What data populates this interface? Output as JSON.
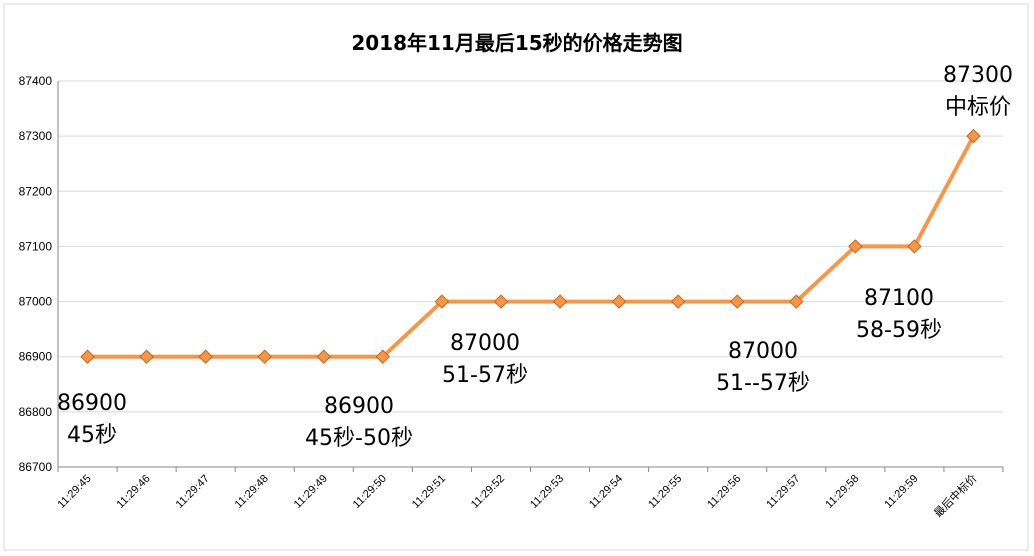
{
  "chart_data": {
    "type": "line",
    "title": "2018年11月最后15秒的价格走势图",
    "xlabel": "",
    "ylabel": "",
    "ylim": [
      86700,
      87400
    ],
    "yticks": [
      86700,
      86800,
      86900,
      87000,
      87100,
      87200,
      87300,
      87400
    ],
    "categories": [
      "11:29:45",
      "11:29:46",
      "11:29:47",
      "11:29:48",
      "11:29:49",
      "11:29:50",
      "11:29:51",
      "11:29:52",
      "11:29:53",
      "11:29:54",
      "11:29:55",
      "11:29:56",
      "11:29:57",
      "11:29:58",
      "11:29:59",
      "最后中标价"
    ],
    "series": [
      {
        "values": [
          86900,
          86900,
          86900,
          86900,
          86900,
          86900,
          87000,
          87000,
          87000,
          87000,
          87000,
          87000,
          87000,
          87100,
          87100,
          87300
        ]
      }
    ],
    "grid": true,
    "legend": "none",
    "colors": {
      "line": "#F79646",
      "marker": "#F79646",
      "marker_edge": "#C0651F",
      "grid": "#D9D9D9",
      "axis": "#868686"
    },
    "annotations": [
      {
        "id": "a1",
        "lines": [
          "86900",
          "45秒"
        ],
        "category_index": 0
      },
      {
        "id": "a2",
        "lines": [
          "86900",
          "45秒-50秒"
        ],
        "category_index": 5
      },
      {
        "id": "a3",
        "lines": [
          "87000",
          "51-57秒"
        ],
        "category_index": 6
      },
      {
        "id": "a4",
        "lines": [
          "87000",
          "51--57秒"
        ],
        "category_index": 11
      },
      {
        "id": "a5",
        "lines": [
          "87100",
          "58-59秒"
        ],
        "category_index": 13
      },
      {
        "id": "a6",
        "lines": [
          "87300",
          "中标价"
        ],
        "category_index": 15
      }
    ]
  }
}
